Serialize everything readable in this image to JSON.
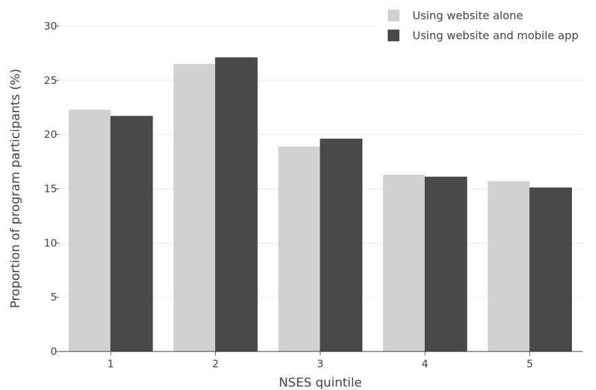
{
  "chart_data": {
    "type": "bar",
    "categories": [
      "1",
      "2",
      "3",
      "4",
      "5"
    ],
    "series": [
      {
        "name": "Using website alone",
        "color": "#d0d0d0",
        "values": [
          22.3,
          26.5,
          18.9,
          16.3,
          15.7
        ]
      },
      {
        "name": "Using website and mobile app",
        "color": "#4a4a4a",
        "values": [
          21.7,
          27.1,
          19.6,
          16.1,
          15.1
        ]
      }
    ],
    "xlabel": "NSES quintile",
    "ylabel": "Proportion of program participants (%)",
    "ylim": [
      0,
      30
    ],
    "yticks": [
      "0",
      "5",
      "10",
      "15",
      "20",
      "25",
      "30"
    ],
    "grid": true,
    "legend_position": "top-right"
  }
}
